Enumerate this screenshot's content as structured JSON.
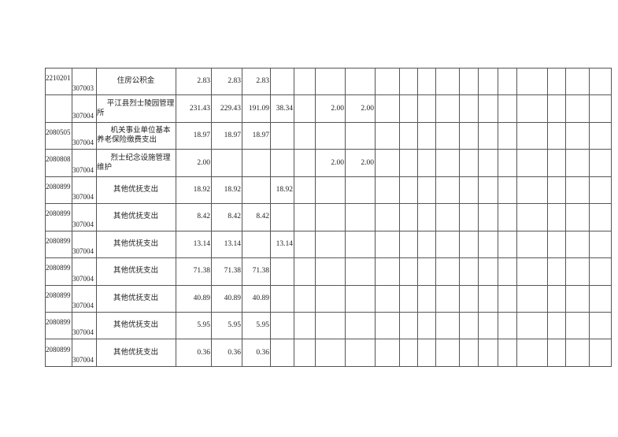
{
  "table": {
    "rows": [
      {
        "code": "2210201",
        "sub": "307003",
        "name": [
          "住房公积金"
        ],
        "values": [
          "2.83",
          "2.83",
          "2.83"
        ]
      },
      {
        "code": "",
        "sub": "307004",
        "name": [
          "平江县烈士陵园管理",
          "所"
        ],
        "values": [
          "231.43",
          "229.43",
          "191.09",
          "38.34",
          "",
          "2.00",
          "2.00"
        ]
      },
      {
        "code": "2080505",
        "sub": "307004",
        "name": [
          "机关事业单位基本",
          "养老保险缴费支出"
        ],
        "values": [
          "18.97",
          "18.97",
          "18.97"
        ]
      },
      {
        "code": "2080808",
        "sub": "307004",
        "name": [
          "烈士纪念设施管理",
          "维护"
        ],
        "values": [
          "2.00",
          "",
          "",
          "",
          "",
          "2.00",
          "2.00"
        ]
      },
      {
        "code": "2080899",
        "sub": "307004",
        "name": [
          "其他优抚支出"
        ],
        "values": [
          "18.92",
          "18.92",
          "",
          "18.92"
        ]
      },
      {
        "code": "2080899",
        "sub": "307004",
        "name": [
          "其他优抚支出"
        ],
        "values": [
          "8.42",
          "8.42",
          "8.42"
        ]
      },
      {
        "code": "2080899",
        "sub": "307004",
        "name": [
          "其他优抚支出"
        ],
        "values": [
          "13.14",
          "13.14",
          "",
          "13.14"
        ]
      },
      {
        "code": "2080899",
        "sub": "307004",
        "name": [
          "其他优抚支出"
        ],
        "values": [
          "71.38",
          "71.38",
          "71.38"
        ]
      },
      {
        "code": "2080899",
        "sub": "307004",
        "name": [
          "其他优抚支出"
        ],
        "values": [
          "40.89",
          "40.89",
          "40.89"
        ]
      },
      {
        "code": "2080899",
        "sub": "307004",
        "name": [
          "其他优抚支出"
        ],
        "values": [
          "5.95",
          "5.95",
          "5.95"
        ]
      },
      {
        "code": "2080899",
        "sub": "307004",
        "name": [
          "其他优抚支出"
        ],
        "values": [
          "0.36",
          "0.36",
          "0.36"
        ]
      }
    ]
  }
}
